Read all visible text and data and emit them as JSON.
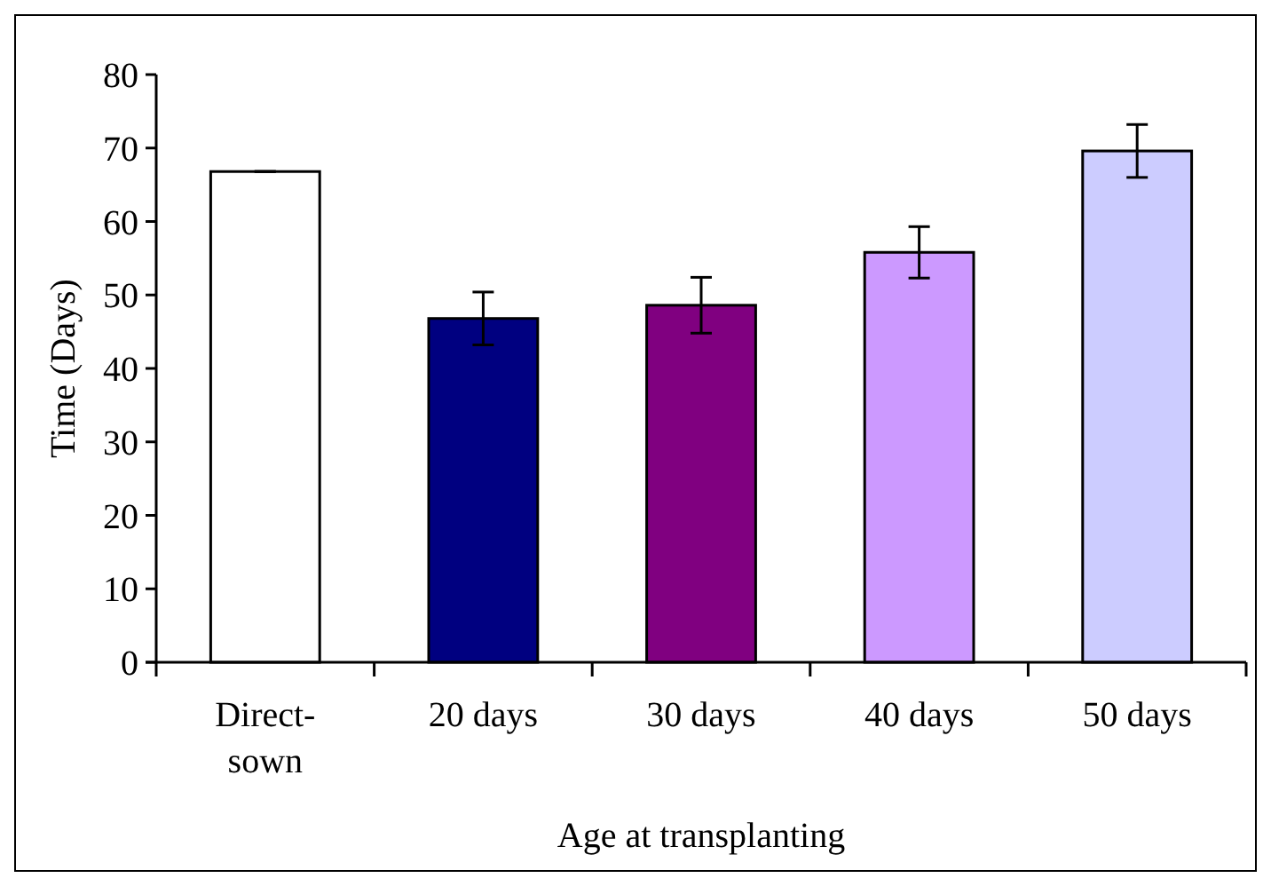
{
  "chart_data": {
    "type": "bar",
    "xlabel": "Age at transplanting",
    "ylabel": "Time (Days)",
    "categories": [
      "Direct-sown",
      "20 days",
      "30 days",
      "40 days",
      "50 days"
    ],
    "values": [
      66.8,
      46.8,
      48.6,
      55.8,
      69.6
    ],
    "colors": [
      "#ffffff",
      "#000080",
      "#800080",
      "#cc99ff",
      "#ccccff"
    ],
    "errors": [
      0,
      3.6,
      3.8,
      3.5,
      3.6
    ],
    "ylim": [
      0,
      80
    ],
    "yticks": [
      0,
      10,
      20,
      30,
      40,
      50,
      60,
      70,
      80
    ],
    "grid": false
  }
}
